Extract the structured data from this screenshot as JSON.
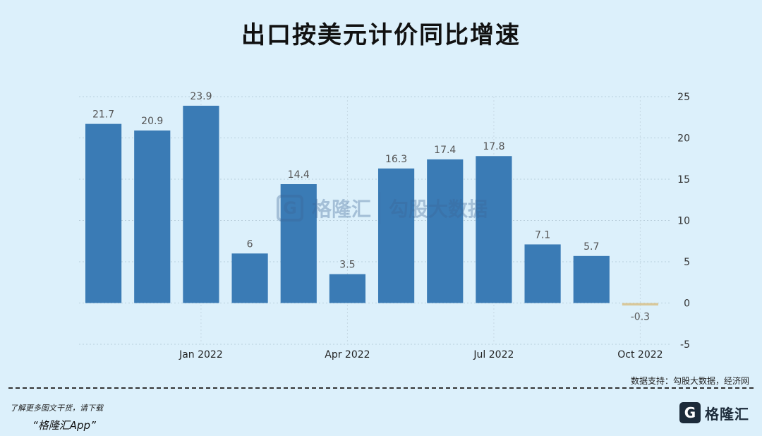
{
  "title": "出口按美元计价同比增速",
  "source": "数据支持：勾股大数据，经济网",
  "promo": {
    "line": "了解更多图文干货，请下载",
    "app": "“格隆汇App”"
  },
  "brand": {
    "icon": "G",
    "text": "格隆汇"
  },
  "watermark": {
    "left": "格隆汇",
    "right": "勾股大数据"
  },
  "chart_data": {
    "type": "bar",
    "categories": [
      "Nov 2021",
      "Dec 2021",
      "Jan 2022",
      "Feb 2022",
      "Mar 2022",
      "Apr 2022",
      "May 2022",
      "Jun 2022",
      "Jul 2022",
      "Aug 2022",
      "Sep 2022",
      "Oct 2022"
    ],
    "values": [
      21.7,
      20.9,
      23.9,
      6,
      14.4,
      3.5,
      16.3,
      17.4,
      17.8,
      7.1,
      5.7,
      -0.3
    ],
    "value_labels": [
      "21.7",
      "20.9",
      "23.9",
      "6",
      "14.4",
      "3.5",
      "16.3",
      "17.4",
      "17.8",
      "7.1",
      "5.7",
      "-0.3"
    ],
    "x_tick_labels": [
      {
        "index": 2,
        "label": "Jan 2022"
      },
      {
        "index": 5,
        "label": "Apr 2022"
      },
      {
        "index": 8,
        "label": "Jul 2022"
      },
      {
        "index": 11,
        "label": "Oct 2022"
      }
    ],
    "y_ticks": [
      25,
      20,
      15,
      10,
      5,
      0,
      -5
    ],
    "ylim": [
      -5,
      25
    ],
    "y_axis_side": "right",
    "grid": true,
    "bar_color": "#3a7bb5",
    "negative_bar_color": "#d8c79a"
  }
}
